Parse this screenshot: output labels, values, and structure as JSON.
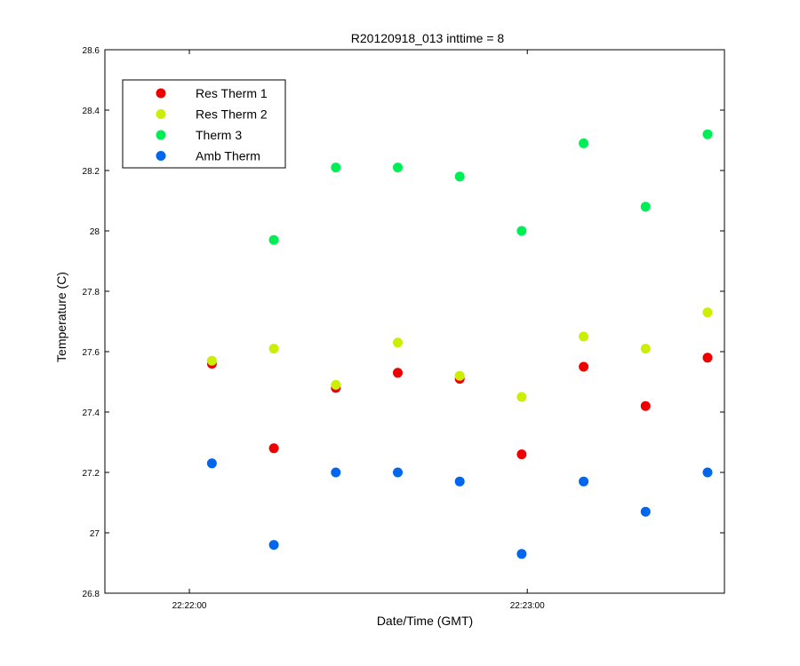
{
  "chart_data": {
    "type": "scatter",
    "title": "R20120918_013 inttime = 8",
    "xlabel": "Date/Time (GMT)",
    "ylabel": "Temperature (C)",
    "xlim": [
      "22:21:45",
      "22:23:35"
    ],
    "ylim": [
      26.8,
      28.6
    ],
    "x_ticks": [
      "22:22:00",
      "22:23:00"
    ],
    "y_ticks": [
      "26.8",
      "27",
      "27.2",
      "27.4",
      "27.6",
      "27.8",
      "28",
      "28.2",
      "28.4",
      "28.6"
    ],
    "x": [
      "22:22:04",
      "22:22:15",
      "22:22:26",
      "22:22:37",
      "22:22:48",
      "22:22:59",
      "22:23:10",
      "22:23:21",
      "22:23:32"
    ],
    "grid": false,
    "legend_position": "top-left",
    "series": [
      {
        "name": "Res Therm 1",
        "color": "#ee0000",
        "values": [
          27.56,
          27.28,
          27.48,
          27.53,
          27.51,
          27.26,
          27.55,
          27.42,
          27.58
        ]
      },
      {
        "name": "Res Therm 2",
        "color": "#ccee00",
        "values": [
          27.57,
          27.61,
          27.49,
          27.63,
          27.52,
          27.45,
          27.65,
          27.61,
          27.73
        ]
      },
      {
        "name": "Therm 3",
        "color": "#00ee55",
        "values": [
          null,
          27.97,
          28.21,
          28.21,
          28.18,
          28.0,
          28.29,
          28.08,
          28.32
        ]
      },
      {
        "name": "Amb Therm",
        "color": "#0066ee",
        "values": [
          27.23,
          26.96,
          27.2,
          27.2,
          27.17,
          26.93,
          27.17,
          27.07,
          27.2
        ]
      }
    ]
  }
}
